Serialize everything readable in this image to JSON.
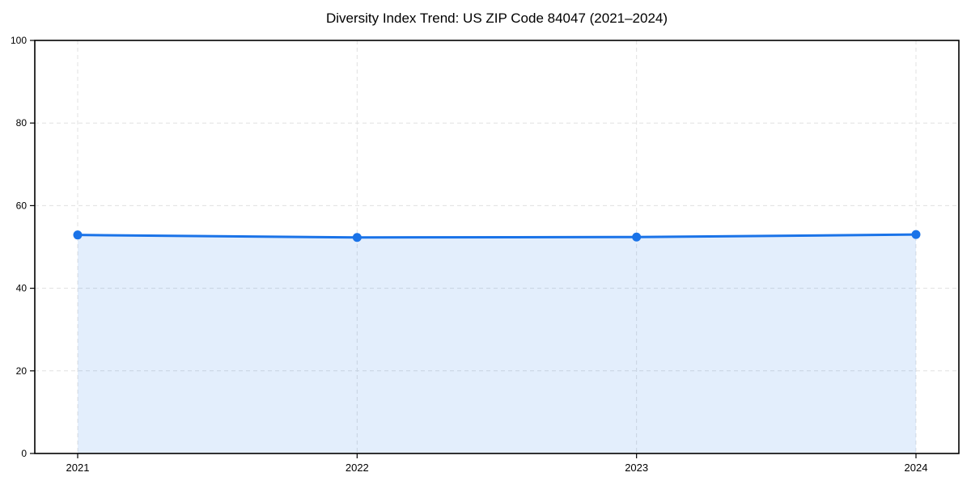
{
  "page": {
    "background_color": "#ffffff"
  },
  "chart_data": {
    "type": "line",
    "title": "Diversity Index Trend: US ZIP Code 84047 (2021–2024)",
    "categories": [
      "2021",
      "2022",
      "2023",
      "2024"
    ],
    "values": [
      52.9,
      52.3,
      52.4,
      53.0
    ],
    "xlabel": "",
    "ylabel": "",
    "ylim": [
      0,
      100
    ],
    "yticks": [
      0,
      20,
      40,
      60,
      80,
      100
    ],
    "grid": true,
    "grid_style": "dashed",
    "legend_position": "none",
    "line_color": "#1a73e8",
    "fill_color": "rgba(26, 115, 232, 0.12)",
    "marker": "circle",
    "gridline_color": "#e0e0e0",
    "spine_color": "#000000",
    "text_color": "#000000"
  }
}
